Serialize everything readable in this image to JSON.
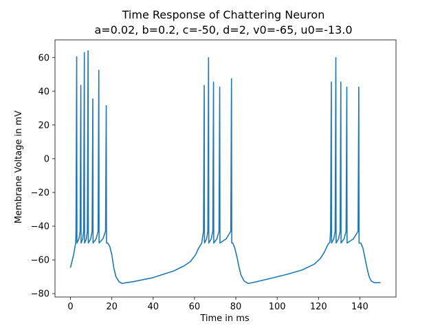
{
  "chart_data": {
    "type": "line",
    "title": "Time Response of Chattering  Neuron",
    "subtitle": "a=0.02, b=0.2, c=-50, d=2, v0=-65, u0=-13.0",
    "xlabel": "Time in ms",
    "ylabel": "Membrane Voltage in mV",
    "xlim": [
      -7.5,
      157.5
    ],
    "ylim": [
      -82,
      70.5
    ],
    "xticks": [
      0,
      20,
      40,
      60,
      80,
      100,
      120,
      140
    ],
    "yticks": [
      -80,
      -60,
      -40,
      -20,
      0,
      20,
      40,
      60
    ],
    "grid": false,
    "series_color": "#1f77b4",
    "bursts": [
      {
        "spikes": [
          [
            3.0,
            60.5
          ],
          [
            5.0,
            43.5
          ],
          [
            6.7,
            63.0
          ],
          [
            8.5,
            64.0
          ],
          [
            10.8,
            35.5
          ],
          [
            13.7,
            52.5
          ],
          [
            17.3,
            31.5
          ]
        ],
        "end": 17.6
      },
      {
        "spikes": [
          [
            64.7,
            43.5
          ],
          [
            66.8,
            60.0
          ],
          [
            69.2,
            45.5
          ],
          [
            72.2,
            42.5
          ],
          [
            77.9,
            47.5
          ]
        ],
        "end": 78.2
      },
      {
        "spikes": [
          [
            126.2,
            45.5
          ],
          [
            128.4,
            60.0
          ],
          [
            130.8,
            45.5
          ],
          [
            133.7,
            42.5
          ],
          [
            139.5,
            42.5
          ]
        ],
        "end": 139.8
      }
    ],
    "trace_points": [
      [
        0,
        -64.5
      ],
      [
        1.5,
        -57
      ],
      [
        2.5,
        -50
      ],
      [
        18,
        -50
      ],
      [
        19,
        -52
      ],
      [
        20,
        -57
      ],
      [
        21,
        -65
      ],
      [
        22,
        -70
      ],
      [
        23.5,
        -73
      ],
      [
        25,
        -74
      ],
      [
        27,
        -73.5
      ],
      [
        30,
        -73
      ],
      [
        40,
        -70.5
      ],
      [
        50,
        -66.5
      ],
      [
        55,
        -63.5
      ],
      [
        58,
        -61
      ],
      [
        60.5,
        -57
      ],
      [
        62,
        -53
      ],
      [
        63.5,
        -50
      ],
      [
        78.5,
        -50
      ],
      [
        79.5,
        -53
      ],
      [
        80.5,
        -58
      ],
      [
        81.5,
        -64
      ],
      [
        82.5,
        -69
      ],
      [
        84,
        -72.5
      ],
      [
        86,
        -74
      ],
      [
        88,
        -73.5
      ],
      [
        95,
        -71.5
      ],
      [
        105,
        -68.5
      ],
      [
        112,
        -66
      ],
      [
        118,
        -62.5
      ],
      [
        121,
        -59
      ],
      [
        123,
        -55
      ],
      [
        124.5,
        -51
      ],
      [
        125.5,
        -49.5
      ],
      [
        140.5,
        -50
      ],
      [
        141.5,
        -53
      ],
      [
        142.5,
        -59
      ],
      [
        143.5,
        -65
      ],
      [
        144.5,
        -70
      ],
      [
        145.5,
        -72.5
      ],
      [
        147,
        -73.5
      ],
      [
        150,
        -73.5
      ]
    ]
  }
}
